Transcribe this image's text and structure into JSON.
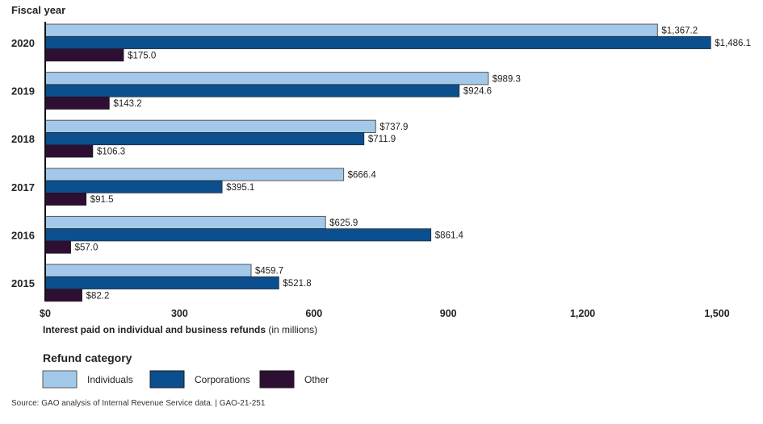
{
  "chart_data": {
    "type": "bar",
    "orientation": "horizontal",
    "y_axis_title": "Fiscal year",
    "xlabel_bold": "Interest paid on individual and business refunds",
    "xlabel_unit": "(in millions)",
    "categories": [
      "2020",
      "2019",
      "2018",
      "2017",
      "2016",
      "2015"
    ],
    "series": [
      {
        "name": "Individuals",
        "color": "#a3c9ea",
        "values": [
          1367.2,
          989.3,
          737.9,
          666.4,
          625.9,
          459.7
        ],
        "labels": [
          "$1,367.2",
          "$989.3",
          "$737.9",
          "$666.4",
          "$625.9",
          "$459.7"
        ]
      },
      {
        "name": "Corporations",
        "color": "#0b4f8f",
        "values": [
          1486.1,
          924.6,
          711.9,
          395.1,
          861.4,
          521.8
        ],
        "labels": [
          "$1,486.1",
          "$924.6",
          "$711.9",
          "$395.1",
          "$861.4",
          "$521.8"
        ]
      },
      {
        "name": "Other",
        "color": "#2e0f33",
        "values": [
          175.0,
          143.2,
          106.3,
          91.5,
          57.0,
          82.2
        ],
        "labels": [
          "$175.0",
          "$143.2",
          "$106.3",
          "$91.5",
          "$57.0",
          "$82.2"
        ]
      }
    ],
    "xlim": [
      0,
      1500
    ],
    "x_ticks": [
      0,
      300,
      600,
      900,
      1200,
      1500
    ],
    "x_tick_labels": [
      "$0",
      "300",
      "600",
      "900",
      "1,200",
      "1,500"
    ],
    "grid": false,
    "legend_title": "Refund category",
    "legend_position": "bottom-left"
  },
  "source": "Source: GAO analysis of Internal Revenue Service data.  |  GAO-21-251"
}
